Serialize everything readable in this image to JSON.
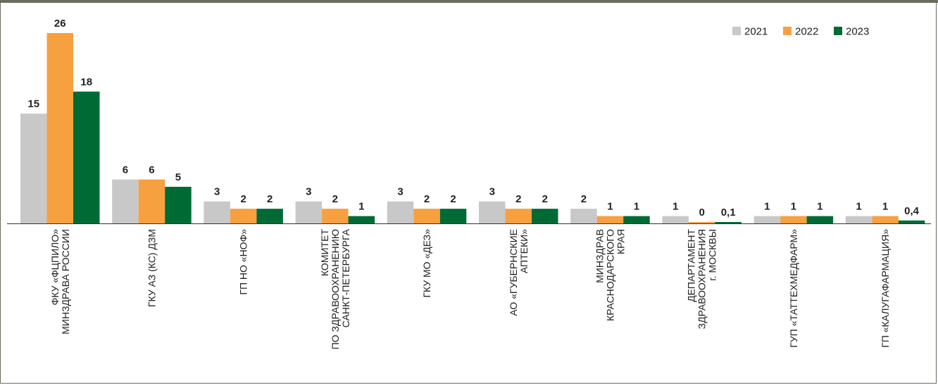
{
  "chart_data": {
    "type": "bar",
    "title": "",
    "xlabel": "",
    "ylabel": "",
    "ylim": [
      0,
      26
    ],
    "grid": false,
    "legend_position": "top-right",
    "categories": [
      [
        "ФКУ «ФЦПИЛО»",
        "МИНЗДРАВА РОССИИ"
      ],
      [
        "ГКУ АЗ (КС) ДЗМ"
      ],
      [
        "ГП НО «НОФ»"
      ],
      [
        "КОМИТЕТ",
        "ПО ЗДРАВООХРАНЕНИЮ",
        "САНКТ-ПЕТЕРБУРГА"
      ],
      [
        "ГКУ МО «ДЕЗ»"
      ],
      [
        "АО «ГУБЕРНСКИЕ",
        "АПТЕКИ»"
      ],
      [
        "МИНЗДРАВ",
        "КРАСНОДАРСКОГО",
        "КРАЯ"
      ],
      [
        "ДЕПАРТАМЕНТ",
        "ЗДРАВООХРАНЕНИЯ",
        "г. МОСКВЫ"
      ],
      [
        "ГУП «ТАТТЕХМЕДФАРМ»"
      ],
      [
        "ГП «КАЛУГАФАРМАЦИЯ»"
      ]
    ],
    "series": [
      {
        "name": "2021",
        "color": "#c8c8c8",
        "values": [
          15,
          6,
          3,
          3,
          3,
          3,
          2,
          1,
          1,
          1
        ],
        "labels": [
          "15",
          "6",
          "3",
          "3",
          "3",
          "3",
          "2",
          "1",
          "1",
          "1"
        ]
      },
      {
        "name": "2022",
        "color": "#f7a040",
        "values": [
          26,
          6,
          2,
          2,
          2,
          2,
          1,
          0,
          1,
          1
        ],
        "labels": [
          "26",
          "6",
          "2",
          "2",
          "2",
          "2",
          "1",
          "0",
          "1",
          "1"
        ]
      },
      {
        "name": "2023",
        "color": "#006a35",
        "values": [
          18,
          5,
          2,
          1,
          2,
          2,
          1,
          0.1,
          1,
          0.4
        ],
        "labels": [
          "18",
          "5",
          "2",
          "1",
          "2",
          "2",
          "1",
          "0,1",
          "1",
          "0,4"
        ]
      }
    ]
  }
}
